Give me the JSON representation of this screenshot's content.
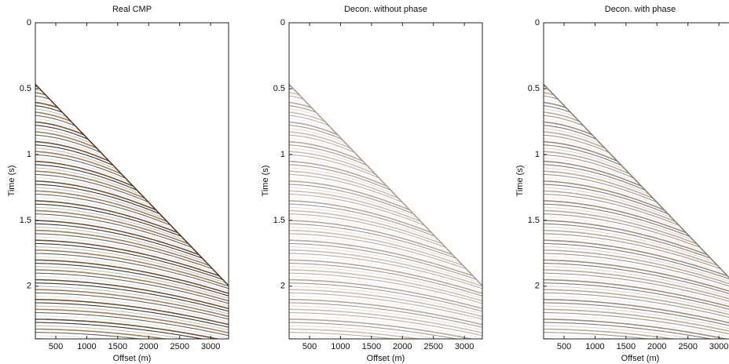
{
  "chart_data": [
    {
      "type": "seismic",
      "title": "Real CMP",
      "xlabel": "Offset (m)",
      "ylabel": "Time (s)",
      "xlim": [
        170,
        3290
      ],
      "xticks": [
        500,
        1000,
        1500,
        2000,
        2500,
        3000
      ],
      "ylim": [
        0,
        2.4
      ],
      "yticks": [
        0,
        0.5,
        1,
        1.5,
        2
      ],
      "y_inverted": true
    },
    {
      "type": "seismic",
      "title": "Decon. without phase",
      "xlabel": "Offset (m)",
      "ylabel": "Time (s)",
      "xlim": [
        170,
        3290
      ],
      "xticks": [
        500,
        1000,
        1500,
        2000,
        2500,
        3000
      ],
      "ylim": [
        0,
        2.4
      ],
      "yticks": [
        0,
        0.5,
        1,
        1.5,
        2
      ],
      "y_inverted": true
    },
    {
      "type": "seismic",
      "title": "Decon. with phase",
      "xlabel": "Offset (m)",
      "ylabel": "Time (s)",
      "xlim": [
        170,
        3290
      ],
      "xticks": [
        500,
        1000,
        1500,
        2000,
        2500,
        3000
      ],
      "ylim": [
        0,
        2.4
      ],
      "yticks": [
        0,
        0.5,
        1,
        1.5,
        2
      ],
      "y_inverted": true
    }
  ]
}
